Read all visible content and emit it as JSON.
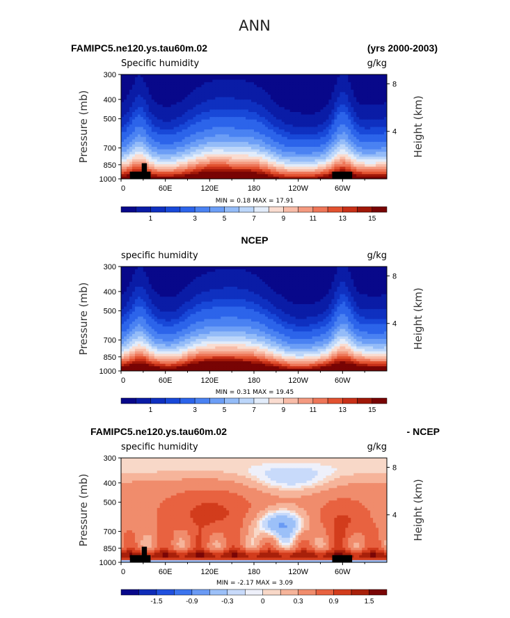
{
  "figure": {
    "title": "ANN"
  },
  "colors": {
    "abs_levels": [
      "#08088a",
      "#0a1ca6",
      "#0f30c0",
      "#1848d8",
      "#2c64ea",
      "#4a82f2",
      "#6c9ef6",
      "#94bcf8",
      "#bcd6fa",
      "#e2ecfa",
      "#fadcd0",
      "#f8bca8",
      "#f49a80",
      "#ee7658",
      "#e25230",
      "#c83018",
      "#a01808",
      "#780404"
    ],
    "diff_levels": [
      "#08088a",
      "#0f2cb8",
      "#2050de",
      "#3c74ee",
      "#6a9af4",
      "#9cc0f8",
      "#c8dafa",
      "#eef0fa",
      "#f8d8c8",
      "#f6b49a",
      "#f08c6c",
      "#e86240",
      "#d23c1c",
      "#a8200a",
      "#7a0606"
    ],
    "terrain": "#000000"
  },
  "chart_data": [
    {
      "type": "heatmap",
      "title": "FAMIPC5.ne120.ys.tau60m.02",
      "subtitle_right": "(yrs 2000-2003)",
      "variable": "Specific humidity",
      "units": "g/kg",
      "ylabel": "Pressure (mb)",
      "ylabel_right": "Height (km)",
      "y_ticks": [
        "300",
        "400",
        "500",
        "700",
        "850",
        "1000"
      ],
      "y_tick_values": [
        300,
        400,
        500,
        700,
        850,
        1000
      ],
      "right_ticks": [
        "8",
        "4"
      ],
      "right_tick_values": [
        8,
        4
      ],
      "x_ticks": [
        "0",
        "60E",
        "120E",
        "180",
        "120W",
        "60W"
      ],
      "x_tick_values": [
        0,
        60,
        120,
        180,
        240,
        300
      ],
      "xlim": [
        0,
        360
      ],
      "ylim": [
        1000,
        300
      ],
      "stats": "MIN =    0.18   MAX =    17.91",
      "min": 0.18,
      "max": 17.91,
      "colorbar_labels": [
        "1",
        "3",
        "5",
        "7",
        "9",
        "11",
        "13",
        "15"
      ],
      "colorbar_levels": [
        0.5,
        1,
        1.5,
        2,
        3,
        4,
        5,
        6,
        7,
        8,
        9,
        10,
        11,
        12,
        13,
        14,
        15
      ],
      "terrain": true
    },
    {
      "type": "heatmap",
      "title": "NCEP",
      "variable": "specific humidity",
      "units": "g/kg",
      "ylabel": "Pressure (mb)",
      "ylabel_right": "Height (km)",
      "y_ticks": [
        "300",
        "400",
        "500",
        "700",
        "850",
        "1000"
      ],
      "y_tick_values": [
        300,
        400,
        500,
        700,
        850,
        1000
      ],
      "right_ticks": [
        "8",
        "4"
      ],
      "right_tick_values": [
        8,
        4
      ],
      "x_ticks": [
        "0",
        "60E",
        "120E",
        "180",
        "120W",
        "60W"
      ],
      "x_tick_values": [
        0,
        60,
        120,
        180,
        240,
        300
      ],
      "xlim": [
        0,
        360
      ],
      "ylim": [
        1000,
        300
      ],
      "stats": "MIN =    0.31   MAX =    19.45",
      "min": 0.31,
      "max": 19.45,
      "colorbar_labels": [
        "1",
        "3",
        "5",
        "7",
        "9",
        "11",
        "13",
        "15"
      ],
      "colorbar_levels": [
        0.5,
        1,
        1.5,
        2,
        3,
        4,
        5,
        6,
        7,
        8,
        9,
        10,
        11,
        12,
        13,
        14,
        15
      ],
      "terrain": false
    },
    {
      "type": "heatmap",
      "title": "FAMIPC5.ne120.ys.tau60m.02",
      "subtitle_right": "- NCEP",
      "variable": "specific humidity",
      "units": "g/kg",
      "ylabel": "Pressure (mb)",
      "ylabel_right": "Height (km)",
      "y_ticks": [
        "300",
        "400",
        "500",
        "700",
        "850",
        "1000"
      ],
      "y_tick_values": [
        300,
        400,
        500,
        700,
        850,
        1000
      ],
      "right_ticks": [
        "8",
        "4"
      ],
      "right_tick_values": [
        8,
        4
      ],
      "x_ticks": [
        "0",
        "60E",
        "120E",
        "180",
        "120W",
        "60W"
      ],
      "x_tick_values": [
        0,
        60,
        120,
        180,
        240,
        300
      ],
      "xlim": [
        0,
        360
      ],
      "ylim": [
        1000,
        300
      ],
      "stats": "MIN =   -2.17   MAX =    3.09",
      "min": -2.17,
      "max": 3.09,
      "colorbar_labels": [
        "-1.5",
        "-0.9",
        "-0.3",
        "0",
        "0.3",
        "0.9",
        "1.5"
      ],
      "colorbar_levels": [
        -1.8,
        -1.5,
        -1.2,
        -0.9,
        -0.6,
        -0.3,
        -0.1,
        0,
        0.1,
        0.3,
        0.6,
        0.9,
        1.2,
        1.5
      ],
      "terrain": true
    }
  ]
}
